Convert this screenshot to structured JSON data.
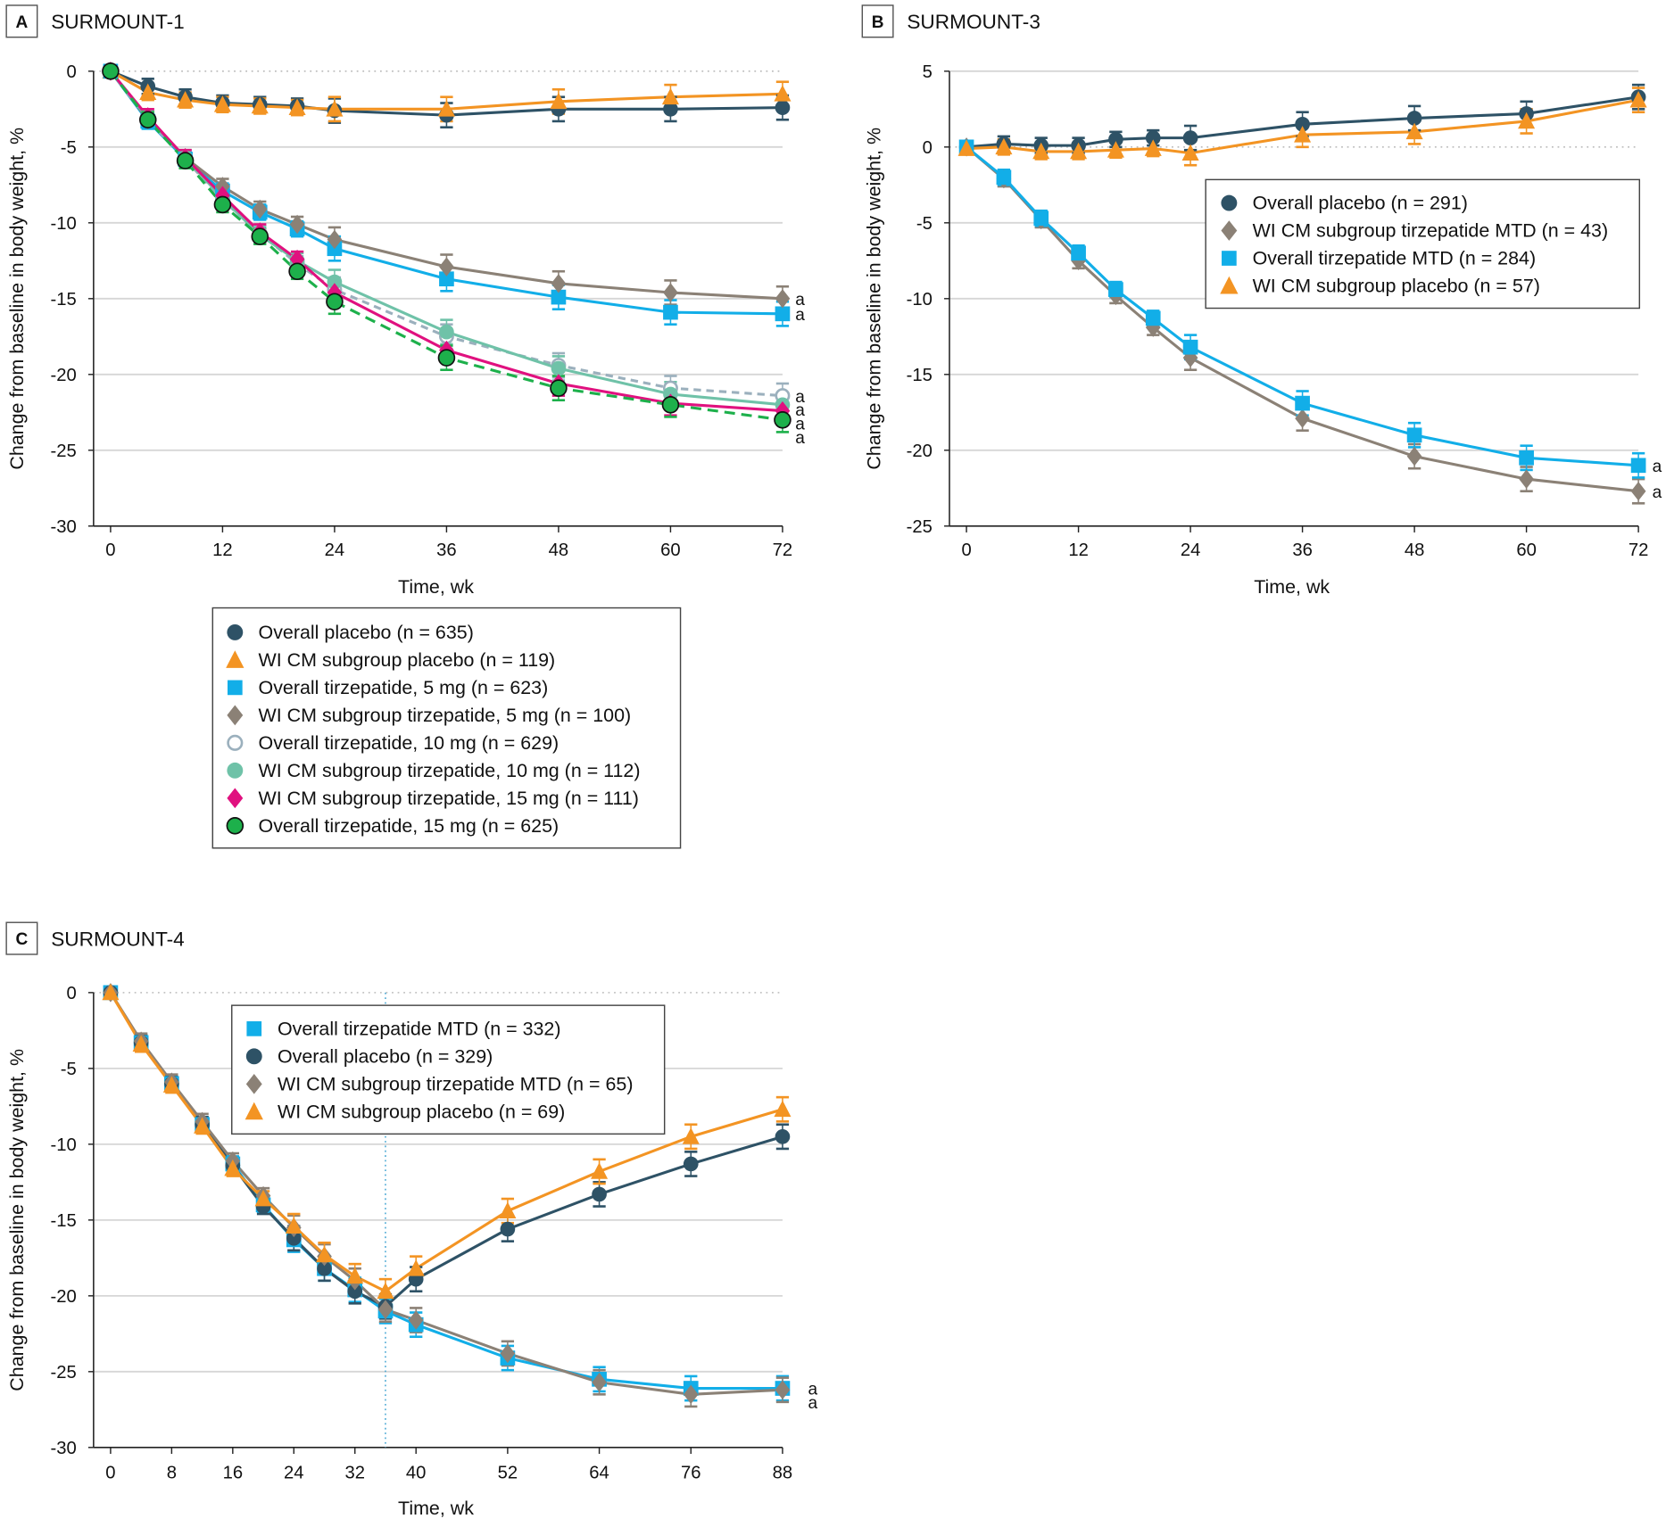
{
  "colors": {
    "placebo_overall": "#2e5266",
    "placebo_wicm": "#f39423",
    "tirz_overall_5": "#12aee8",
    "tirz_wicm_5": "#8b8176",
    "tirz_overall_10": "#9bb0bd",
    "tirz_wicm_10": "#6fc2a8",
    "tirz_wicm_15": "#e0117f",
    "tirz_overall_15": "#1db04b"
  },
  "chart_data": [
    {
      "panel": "A",
      "title": "SURMOUNT-1",
      "type": "line",
      "xlabel": "Time, wk",
      "ylabel": "Change from baseline in body weight, %",
      "xlim": [
        0,
        72
      ],
      "ylim": [
        -30,
        0
      ],
      "xticks": [
        0,
        12,
        24,
        36,
        48,
        60,
        72
      ],
      "yticks": [
        0,
        -5,
        -10,
        -15,
        -20,
        -25,
        -30
      ],
      "grid": true,
      "legend_position": "bottom",
      "significance_marker": "a",
      "series": [
        {
          "key": "placebo_overall",
          "name": "Overall placebo (n = 635)",
          "marker": "circle",
          "dash": "solid",
          "x": [
            0,
            4,
            8,
            12,
            16,
            20,
            24,
            36,
            48,
            60,
            72
          ],
          "y": [
            0,
            -1.0,
            -1.7,
            -2.1,
            -2.2,
            -2.3,
            -2.6,
            -2.9,
            -2.5,
            -2.5,
            -2.4
          ]
        },
        {
          "key": "placebo_wicm",
          "name": "WI CM subgroup placebo (n = 119)",
          "marker": "triangle",
          "dash": "solid",
          "x": [
            0,
            4,
            8,
            12,
            16,
            20,
            24,
            36,
            48,
            60,
            72
          ],
          "y": [
            0,
            -1.4,
            -1.9,
            -2.2,
            -2.3,
            -2.4,
            -2.5,
            -2.5,
            -2.0,
            -1.7,
            -1.5
          ]
        },
        {
          "key": "tirz_overall_5",
          "name": "Overall tirzepatide, 5 mg (n = 623)",
          "marker": "square",
          "dash": "solid",
          "x": [
            0,
            4,
            8,
            12,
            16,
            20,
            24,
            36,
            48,
            60,
            72
          ],
          "y": [
            0,
            -3.3,
            -5.8,
            -7.9,
            -9.3,
            -10.4,
            -11.7,
            -13.7,
            -14.9,
            -15.9,
            -16.0
          ]
        },
        {
          "key": "tirz_wicm_5",
          "name": "WI CM subgroup tirzepatide, 5 mg (n = 100)",
          "marker": "diamond",
          "dash": "solid",
          "x": [
            0,
            4,
            8,
            12,
            16,
            20,
            24,
            36,
            48,
            60,
            72
          ],
          "y": [
            0,
            -3.2,
            -5.7,
            -7.6,
            -9.1,
            -10.1,
            -11.1,
            -12.9,
            -14.0,
            -14.6,
            -15.0
          ]
        },
        {
          "key": "tirz_overall_10",
          "name": "Overall tirzepatide, 10 mg (n = 629)",
          "marker": "open-circle",
          "dash": "dashed",
          "x": [
            0,
            4,
            8,
            12,
            16,
            20,
            24,
            36,
            48,
            60,
            72
          ],
          "y": [
            0,
            -3.2,
            -5.8,
            -8.5,
            -10.7,
            -12.7,
            -14.4,
            -17.5,
            -19.4,
            -20.9,
            -21.4
          ]
        },
        {
          "key": "tirz_wicm_10",
          "name": "WI CM subgroup tirzepatide, 10 mg (n = 112)",
          "marker": "circle",
          "dash": "solid",
          "x": [
            0,
            4,
            8,
            12,
            16,
            20,
            24,
            36,
            48,
            60,
            72
          ],
          "y": [
            0,
            -3.1,
            -5.7,
            -8.4,
            -10.8,
            -12.5,
            -13.9,
            -17.2,
            -19.6,
            -21.3,
            -22.0
          ]
        },
        {
          "key": "tirz_wicm_15",
          "name": "WI CM subgroup tirzepatide, 15 mg (n = 111)",
          "marker": "diamond",
          "dash": "solid",
          "x": [
            0,
            4,
            8,
            12,
            16,
            20,
            24,
            36,
            48,
            60,
            72
          ],
          "y": [
            0,
            -3.0,
            -5.7,
            -8.2,
            -10.6,
            -12.4,
            -14.6,
            -18.4,
            -20.6,
            -21.9,
            -22.4
          ]
        },
        {
          "key": "tirz_overall_15",
          "name": "Overall tirzepatide, 15 mg (n = 625)",
          "marker": "circle-outlined",
          "dash": "dashed",
          "x": [
            0,
            4,
            8,
            12,
            16,
            20,
            24,
            36,
            48,
            60,
            72
          ],
          "y": [
            0,
            -3.2,
            -5.9,
            -8.8,
            -10.9,
            -13.2,
            -15.2,
            -18.9,
            -20.9,
            -22.0,
            -23.0
          ]
        }
      ]
    },
    {
      "panel": "B",
      "title": "SURMOUNT-3",
      "type": "line",
      "xlabel": "Time, wk",
      "ylabel": "Change from baseline in body weight, %",
      "xlim": [
        0,
        72
      ],
      "ylim": [
        -25,
        5
      ],
      "xticks": [
        0,
        12,
        24,
        36,
        48,
        60,
        72
      ],
      "yticks": [
        5,
        0,
        -5,
        -10,
        -15,
        -20,
        -25
      ],
      "grid": true,
      "legend_position": "top-right",
      "significance_marker": "a",
      "series": [
        {
          "key": "placebo_overall",
          "name": "Overall placebo (n = 291)",
          "marker": "circle",
          "dash": "solid",
          "x": [
            0,
            4,
            8,
            12,
            16,
            20,
            24,
            36,
            48,
            60,
            72
          ],
          "y": [
            0,
            0.2,
            0.1,
            0.1,
            0.5,
            0.6,
            0.6,
            1.5,
            1.9,
            2.2,
            3.3
          ]
        },
        {
          "key": "tirz_wicm_5",
          "name": "WI CM subgroup tirzepatide MTD (n = 43)",
          "marker": "diamond",
          "dash": "solid",
          "x": [
            0,
            4,
            8,
            12,
            16,
            20,
            24,
            36,
            48,
            60,
            72
          ],
          "y": [
            0,
            -2.1,
            -4.8,
            -7.5,
            -9.8,
            -11.9,
            -13.9,
            -17.9,
            -20.4,
            -21.9,
            -22.7
          ]
        },
        {
          "key": "tirz_overall_5",
          "name": "Overall tirzepatide MTD (n = 284)",
          "marker": "square",
          "dash": "solid",
          "x": [
            0,
            4,
            8,
            12,
            16,
            20,
            24,
            36,
            48,
            60,
            72
          ],
          "y": [
            0,
            -2.0,
            -4.7,
            -7.0,
            -9.4,
            -11.3,
            -13.2,
            -16.9,
            -19.0,
            -20.5,
            -21.0
          ]
        },
        {
          "key": "placebo_wicm",
          "name": "WI CM subgroup placebo (n = 57)",
          "marker": "triangle",
          "dash": "solid",
          "x": [
            0,
            4,
            8,
            12,
            16,
            20,
            24,
            36,
            48,
            60,
            72
          ],
          "y": [
            -0.1,
            0.0,
            -0.3,
            -0.3,
            -0.2,
            -0.1,
            -0.4,
            0.8,
            1.0,
            1.7,
            3.1
          ]
        }
      ]
    },
    {
      "panel": "C",
      "title": "SURMOUNT-4",
      "type": "line",
      "xlabel": "Time, wk",
      "ylabel": "Change from baseline in body weight, %",
      "xlim": [
        0,
        88
      ],
      "ylim": [
        -30,
        0
      ],
      "xticks": [
        0,
        8,
        16,
        24,
        32,
        40,
        52,
        64,
        76,
        88
      ],
      "yticks": [
        0,
        -5,
        -10,
        -15,
        -20,
        -25,
        -30
      ],
      "grid": true,
      "randomization_week": 36,
      "legend_position": "top-center",
      "significance_marker": "a",
      "series": [
        {
          "key": "tirz_overall_5",
          "name": "Overall tirzepatide MTD (n = 332)",
          "marker": "square",
          "dash": "solid",
          "x": [
            0,
            4,
            8,
            12,
            16,
            20,
            24,
            28,
            32,
            36,
            40,
            52,
            64,
            76,
            88
          ],
          "y": [
            0,
            -3.3,
            -6.0,
            -8.7,
            -11.3,
            -14.0,
            -16.3,
            -18.2,
            -19.6,
            -21.0,
            -21.9,
            -24.1,
            -25.5,
            -26.1,
            -26.1
          ]
        },
        {
          "key": "placebo_overall",
          "name": "Overall placebo (n = 329)",
          "marker": "circle",
          "dash": "solid",
          "x": [
            0,
            4,
            8,
            12,
            16,
            20,
            24,
            28,
            32,
            36,
            40,
            52,
            64,
            76,
            88
          ],
          "y": [
            0,
            -3.3,
            -6.0,
            -8.7,
            -11.4,
            -14.1,
            -16.2,
            -18.2,
            -19.7,
            -20.7,
            -18.9,
            -15.6,
            -13.3,
            -11.3,
            -9.5
          ]
        },
        {
          "key": "tirz_wicm_5",
          "name": "WI CM subgroup tirzepatide MTD (n = 65)",
          "marker": "diamond",
          "dash": "solid",
          "x": [
            0,
            4,
            8,
            12,
            16,
            20,
            24,
            28,
            32,
            36,
            40,
            52,
            64,
            76,
            88
          ],
          "y": [
            0,
            -3.2,
            -5.9,
            -8.5,
            -11.1,
            -13.4,
            -15.5,
            -17.4,
            -19.0,
            -20.9,
            -21.6,
            -23.8,
            -25.7,
            -26.5,
            -26.2
          ]
        },
        {
          "key": "placebo_wicm",
          "name": "WI CM subgroup placebo (n = 69)",
          "marker": "triangle",
          "dash": "solid",
          "x": [
            0,
            4,
            8,
            12,
            16,
            20,
            24,
            28,
            32,
            36,
            40,
            52,
            64,
            76,
            88
          ],
          "y": [
            0,
            -3.4,
            -6.1,
            -8.8,
            -11.6,
            -13.6,
            -15.4,
            -17.3,
            -18.7,
            -19.7,
            -18.2,
            -14.4,
            -11.8,
            -9.5,
            -7.7
          ]
        }
      ]
    }
  ],
  "panels": {
    "A": {
      "letter": "A",
      "title": "SURMOUNT-1"
    },
    "B": {
      "letter": "B",
      "title": "SURMOUNT-3"
    },
    "C": {
      "letter": "C",
      "title": "SURMOUNT-4"
    }
  }
}
